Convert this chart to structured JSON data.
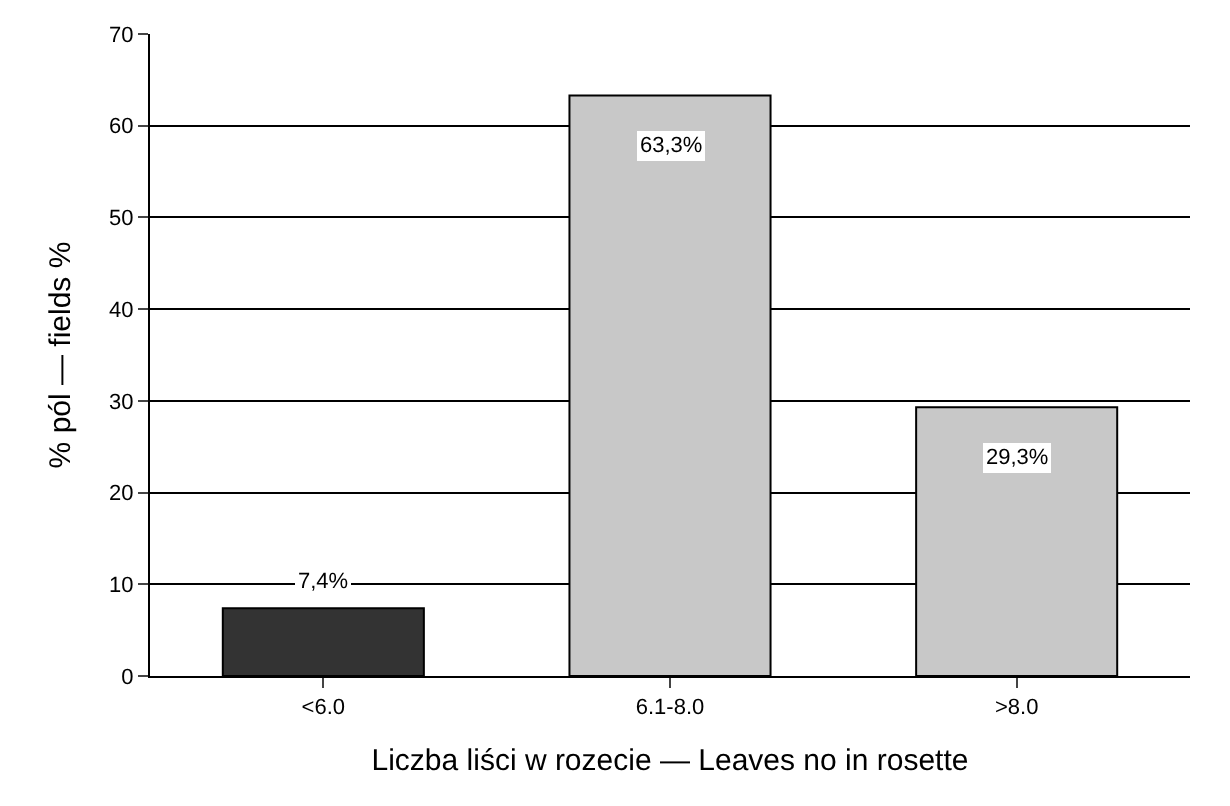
{
  "chart_data": {
    "type": "bar",
    "xlabel": "Liczba liści w rozecie — Leaves no in rosette",
    "ylabel": "% pól — fields %",
    "categories": [
      "<6.0",
      "6.1-8.0",
      ">8.0"
    ],
    "values": [
      7.4,
      63.3,
      29.3
    ],
    "colors": [
      "#333333",
      "#c8c8c8",
      "#c8c8c8"
    ],
    "value_labels": [
      "7,4%",
      "63,3%",
      "29,3%"
    ],
    "ylim": [
      0,
      70
    ],
    "yticks": [
      0,
      10,
      20,
      30,
      40,
      50,
      60,
      70
    ],
    "grid": "y"
  }
}
